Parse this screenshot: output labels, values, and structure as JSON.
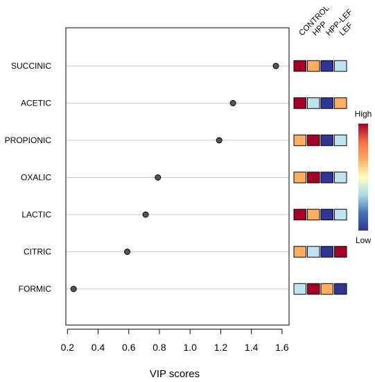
{
  "chart_data": {
    "type": "scatter",
    "title": "",
    "xlabel": "VIP scores",
    "ylabel": "",
    "xlim": [
      0.2,
      1.6
    ],
    "x_ticks": [
      "0.2",
      "0.4",
      "0.6",
      "0.8",
      "1.0",
      "1.2",
      "1.4",
      "1.6"
    ],
    "grid": "horizontal lines at each category",
    "categories": [
      "SUCCINIC",
      "ACETIC",
      "PROPIONIC",
      "OXALIC",
      "LACTIC",
      "CITRIC",
      "FORMIC"
    ],
    "values": [
      1.56,
      1.28,
      1.19,
      0.79,
      0.71,
      0.59,
      0.24
    ],
    "point_color": "#555555",
    "heatmap": {
      "columns": [
        "CONTROL",
        "HPP",
        "HPP-LEF",
        "LEF"
      ],
      "levels": [
        [
          4,
          3,
          1,
          2
        ],
        [
          4,
          2,
          1,
          3
        ],
        [
          3,
          4,
          1,
          2
        ],
        [
          3,
          4,
          1,
          2
        ],
        [
          4,
          3,
          1,
          2
        ],
        [
          3,
          2,
          1,
          4
        ],
        [
          2,
          4,
          3,
          1
        ]
      ],
      "level_colors": {
        "1": "#313695",
        "2": "#bfe3ef",
        "3": "#fdae61",
        "4": "#a50026"
      }
    },
    "legend": {
      "placement": "right",
      "high_label": "High",
      "low_label": "Low",
      "gradient": [
        "#a50026",
        "#f46d43",
        "#fdae61",
        "#ffffbf",
        "#abd9e9",
        "#4575b4",
        "#313695"
      ]
    }
  }
}
